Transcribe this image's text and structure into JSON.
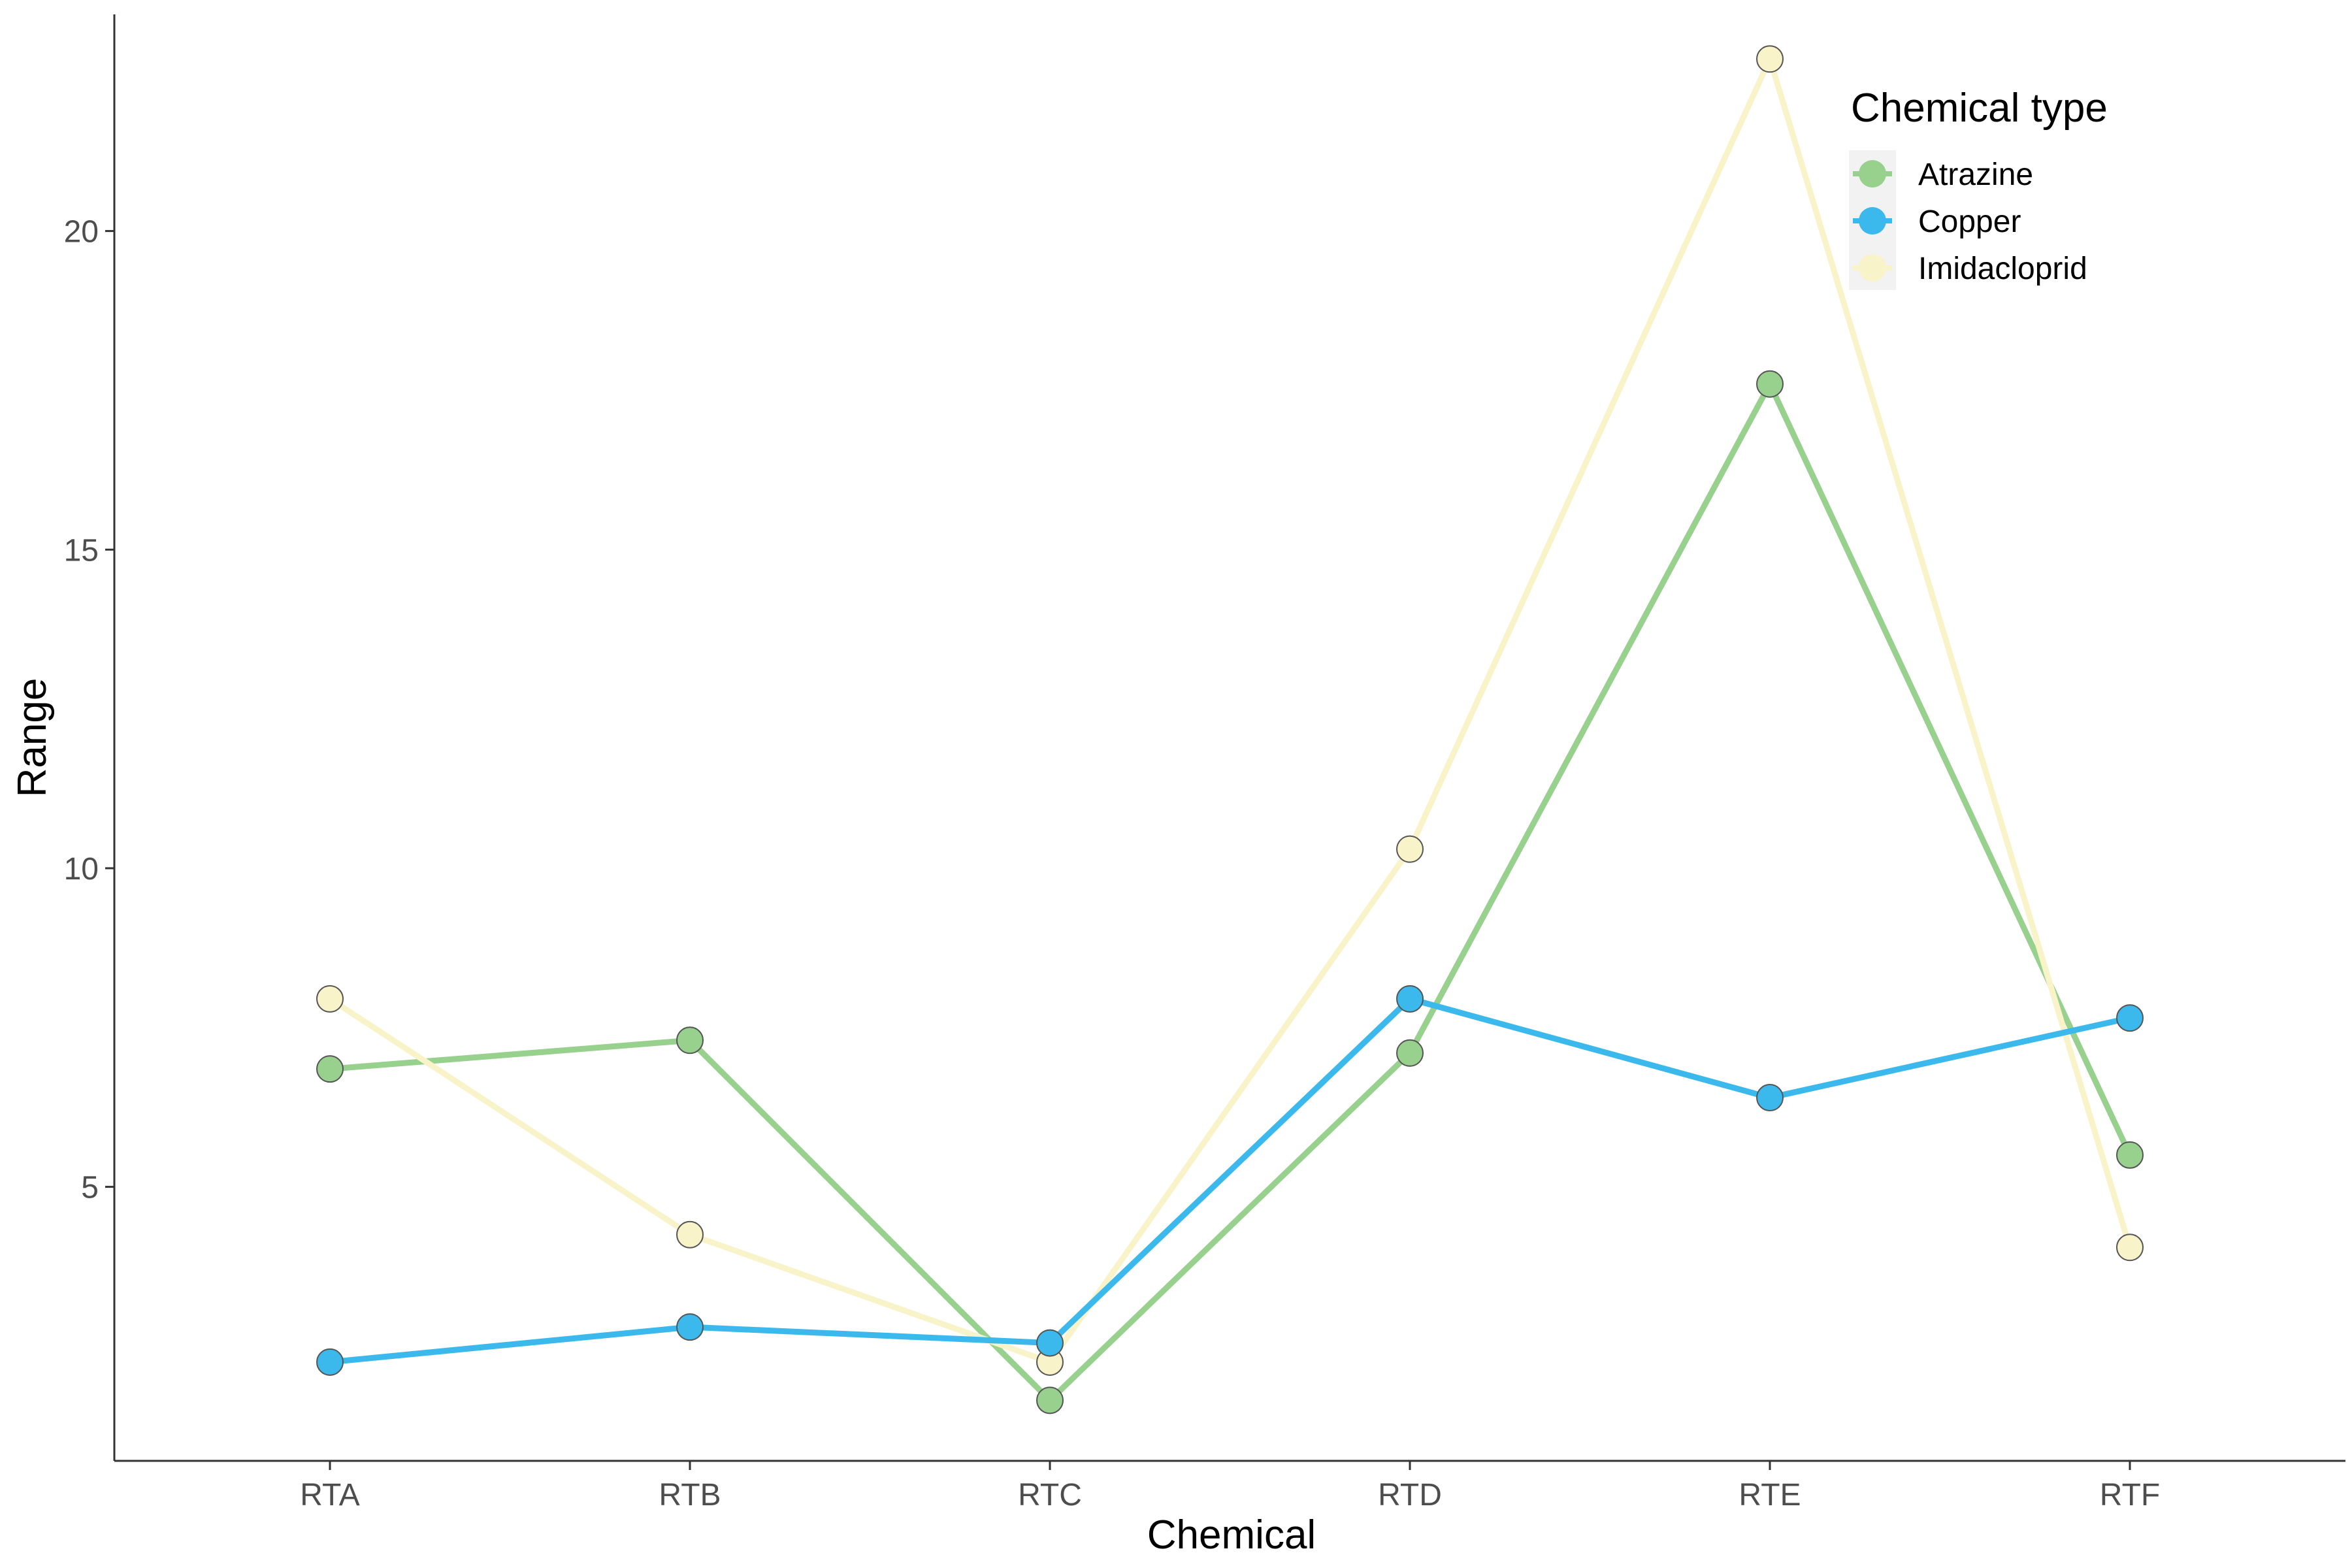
{
  "chart_data": {
    "type": "line",
    "title": "",
    "xlabel": "Chemical",
    "ylabel": "Range",
    "categories": [
      "RTA",
      "RTB",
      "RTC",
      "RTD",
      "RTE",
      "RTF"
    ],
    "yticks": [
      5,
      10,
      15,
      20
    ],
    "ylim": [
      0.7,
      23.4
    ],
    "grid": false,
    "legend": {
      "title": "Chemical type",
      "placement": "top-right"
    },
    "draw_order": [
      0,
      2,
      1
    ],
    "series": [
      {
        "name": "Atrazine",
        "color": "#98d08e",
        "values": [
          6.85,
          7.3,
          1.65,
          7.1,
          17.6,
          5.5
        ]
      },
      {
        "name": "Copper",
        "color": "#3bb8ec",
        "values": [
          2.25,
          2.8,
          2.55,
          7.95,
          6.4,
          7.65
        ]
      },
      {
        "name": "Imidacloprid",
        "color": "#f8f3c8",
        "values": [
          7.95,
          4.25,
          2.25,
          10.3,
          22.7,
          4.05
        ]
      }
    ]
  }
}
